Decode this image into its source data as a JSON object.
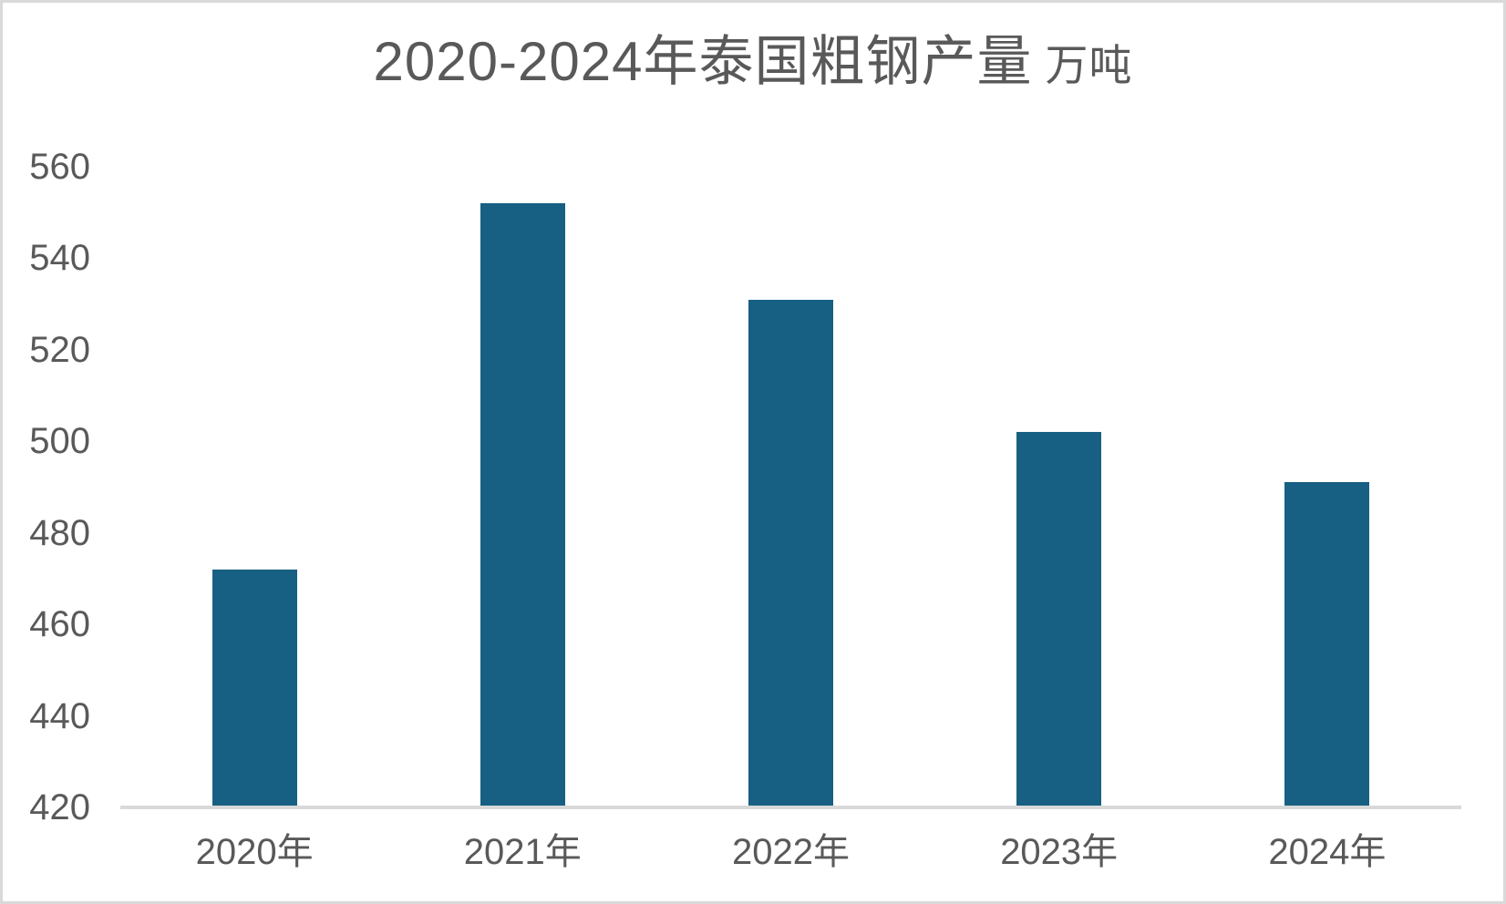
{
  "chart_data": {
    "type": "bar",
    "title": "2020-2024年泰国粗钢产量",
    "title_unit": "万吨",
    "categories": [
      "2020年",
      "2021年",
      "2022年",
      "2023年",
      "2024年"
    ],
    "values": [
      472,
      552,
      531,
      502,
      491
    ],
    "series": [
      {
        "name": "粗钢产量(万吨)",
        "values": [
          472,
          552,
          531,
          502,
          491
        ]
      }
    ],
    "xlabel": "",
    "ylabel": "",
    "ylim": [
      420,
      560
    ],
    "ytick_step": 20,
    "yticks": [
      560,
      540,
      520,
      500,
      480,
      460,
      440,
      420
    ],
    "grid": false,
    "legend_position": "none",
    "colors": {
      "bar": "#186083",
      "text": "#595959",
      "axis_line": "#d9d9d9",
      "background": "#ffffff",
      "frame_border": "#d9d9d9"
    }
  }
}
